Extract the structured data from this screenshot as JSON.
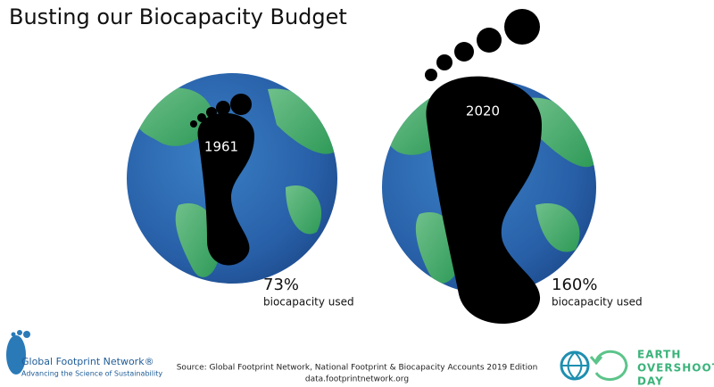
{
  "header": {
    "title": "Busting our Biocapacity Budget"
  },
  "panels": [
    {
      "year": "1961",
      "percent": "73%",
      "caption": "biocapacity used"
    },
    {
      "year": "2020",
      "percent": "160%",
      "caption": "biocapacity used"
    }
  ],
  "footer": {
    "left_logo": {
      "name": "Global Footprint Network®",
      "tagline": "Advancing the Science of Sustainability"
    },
    "source": "Source: Global Footprint Network, National Footprint & Biocapacity Accounts 2019 Edition",
    "url": "data.footprintnetwork.org",
    "right_logo": {
      "line1": "EARTH",
      "line2": "OVERSHOOT",
      "line3": "DAY"
    }
  }
}
